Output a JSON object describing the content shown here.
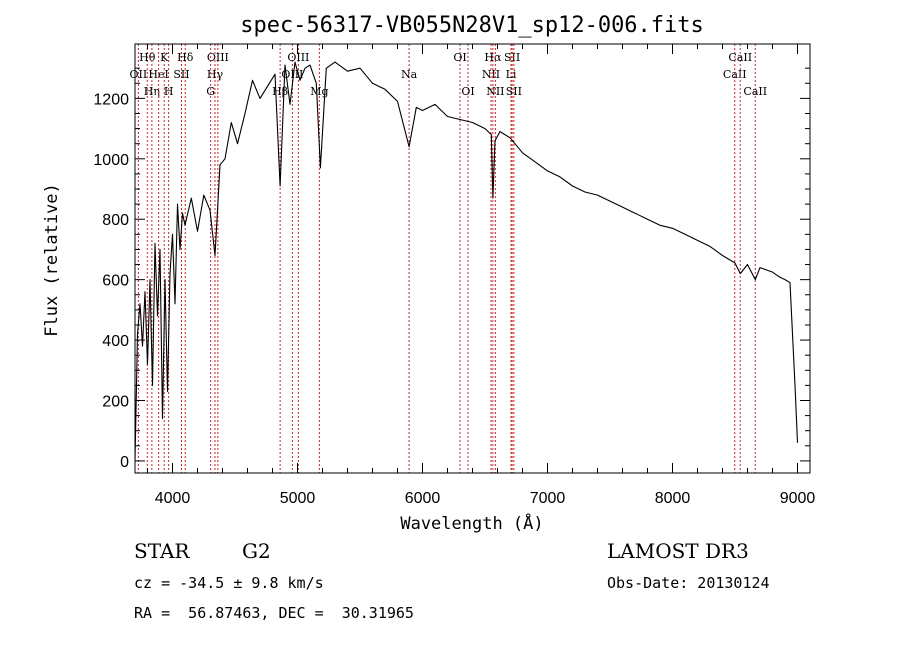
{
  "chart_data": {
    "type": "line",
    "title": "spec-56317-VB055N28V1_sp12-006.fits",
    "xlabel": "Wavelength (Å)",
    "ylabel": "Flux (relative)",
    "xlim": [
      3700,
      9100
    ],
    "ylim": [
      -40,
      1380
    ],
    "xticks": [
      4000,
      5000,
      6000,
      7000,
      8000,
      9000
    ],
    "xtick_labels": [
      "4000",
      "5000",
      "6000",
      "7000",
      "8000",
      "9000"
    ],
    "yticks": [
      0,
      200,
      400,
      600,
      800,
      1000,
      1200
    ],
    "ytick_labels": [
      "0",
      "200",
      "400",
      "600",
      "800",
      "1000",
      "1200"
    ],
    "series": [
      {
        "name": "flux",
        "x": [
          3700,
          3720,
          3740,
          3760,
          3780,
          3800,
          3820,
          3840,
          3860,
          3880,
          3900,
          3920,
          3940,
          3960,
          3980,
          4000,
          4020,
          4040,
          4060,
          4080,
          4100,
          4150,
          4200,
          4250,
          4300,
          4340,
          4380,
          4420,
          4470,
          4520,
          4580,
          4640,
          4700,
          4760,
          4820,
          4861,
          4900,
          4940,
          4980,
          5020,
          5060,
          5100,
          5150,
          5183,
          5230,
          5300,
          5400,
          5500,
          5600,
          5700,
          5800,
          5893,
          5950,
          6000,
          6100,
          6200,
          6300,
          6400,
          6500,
          6550,
          6563,
          6580,
          6620,
          6700,
          6800,
          6900,
          7000,
          7100,
          7200,
          7300,
          7400,
          7500,
          7600,
          7700,
          7800,
          7900,
          8000,
          8100,
          8200,
          8300,
          8400,
          8500,
          8542,
          8600,
          8662,
          8700,
          8800,
          8850,
          8900,
          8940,
          8960,
          8980,
          9000
        ],
        "values": [
          0,
          420,
          520,
          380,
          560,
          320,
          600,
          250,
          720,
          480,
          700,
          140,
          600,
          230,
          620,
          750,
          520,
          850,
          700,
          820,
          780,
          870,
          760,
          880,
          830,
          680,
          980,
          1000,
          1120,
          1050,
          1150,
          1260,
          1200,
          1240,
          1280,
          910,
          1310,
          1180,
          1320,
          1260,
          1300,
          1310,
          1250,
          970,
          1300,
          1320,
          1290,
          1300,
          1250,
          1230,
          1190,
          1040,
          1170,
          1160,
          1180,
          1140,
          1130,
          1120,
          1100,
          1080,
          870,
          1060,
          1090,
          1070,
          1020,
          990,
          960,
          940,
          910,
          890,
          880,
          860,
          840,
          820,
          800,
          780,
          770,
          750,
          730,
          710,
          680,
          655,
          620,
          650,
          600,
          640,
          625,
          610,
          600,
          590,
          420,
          250,
          60
        ]
      }
    ],
    "lines": [
      {
        "name": "Hθ",
        "x": 3798,
        "row": 0
      },
      {
        "name": "OII",
        "x": 3727,
        "row": 1
      },
      {
        "name": "Hη",
        "x": 3835,
        "row": 2
      },
      {
        "name": "HeI",
        "x": 3889,
        "row": 1
      },
      {
        "name": "K",
        "x": 3934,
        "row": 0
      },
      {
        "name": "H",
        "x": 3969,
        "row": 2
      },
      {
        "name": "SII",
        "x": 4072,
        "row": 1
      },
      {
        "name": "Hδ",
        "x": 4102,
        "row": 0
      },
      {
        "name": "OIII",
        "x": 4363,
        "row": 0
      },
      {
        "name": "Hγ",
        "x": 4340,
        "row": 1
      },
      {
        "name": "G",
        "x": 4305,
        "row": 2
      },
      {
        "name": "Hβ",
        "x": 4861,
        "row": 2
      },
      {
        "name": "OIII",
        "x": 4959,
        "row": 1
      },
      {
        "name": "OIII",
        "x": 5007,
        "row": 0
      },
      {
        "name": "Mg",
        "x": 5175,
        "row": 2
      },
      {
        "name": "Na",
        "x": 5893,
        "row": 1
      },
      {
        "name": "OI",
        "x": 6300,
        "row": 0
      },
      {
        "name": "OI",
        "x": 6364,
        "row": 2
      },
      {
        "name": "NII",
        "x": 6548,
        "row": 1
      },
      {
        "name": "Hα",
        "x": 6563,
        "row": 0
      },
      {
        "name": "NII",
        "x": 6583,
        "row": 2
      },
      {
        "name": "SII",
        "x": 6717,
        "row": 0
      },
      {
        "name": "Li",
        "x": 6708,
        "row": 1
      },
      {
        "name": "SII",
        "x": 6731,
        "row": 2
      },
      {
        "name": "CaII",
        "x": 8498,
        "row": 1
      },
      {
        "name": "CaII",
        "x": 8542,
        "row": 0
      },
      {
        "name": "CaII",
        "x": 8662,
        "row": 2
      }
    ]
  },
  "info": {
    "class": "STAR",
    "subclass": "G2",
    "survey": "LAMOST DR3",
    "cz": "cz = -34.5 ± 9.8 km/s",
    "obs_date": "Obs-Date: 20130124",
    "coords": "RA =  56.87463, DEC =  30.31965"
  }
}
